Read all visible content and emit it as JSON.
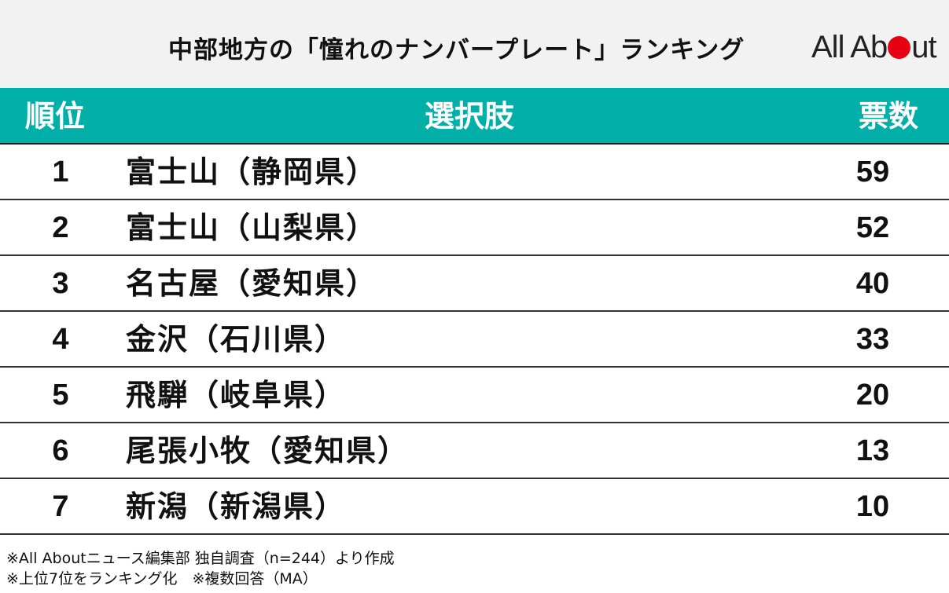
{
  "header": {
    "title": "中部地方の「憧れのナンバープレート」ランキング",
    "logo_text_before": "All Ab",
    "logo_text_after": "ut"
  },
  "table": {
    "headers": {
      "rank": "順位",
      "choice": "選択肢",
      "votes": "票数"
    }
  },
  "chart_data": {
    "type": "table",
    "columns": [
      "順位",
      "選択肢",
      "票数"
    ],
    "rows": [
      {
        "rank": "1",
        "choice": "富士山（静岡県）",
        "votes": 59
      },
      {
        "rank": "2",
        "choice": "富士山（山梨県）",
        "votes": 52
      },
      {
        "rank": "3",
        "choice": "名古屋（愛知県）",
        "votes": 40
      },
      {
        "rank": "4",
        "choice": "金沢（石川県）",
        "votes": 33
      },
      {
        "rank": "5",
        "choice": "飛騨（岐阜県）",
        "votes": 20
      },
      {
        "rank": "6",
        "choice": "尾張小牧（愛知県）",
        "votes": 13
      },
      {
        "rank": "7",
        "choice": "新潟（新潟県）",
        "votes": 10
      }
    ]
  },
  "notes": [
    "※All Aboutニュース編集部 独自調査（n=244）より作成",
    "※上位7位をランキング化　※複数回答（MA）"
  ],
  "colors": {
    "header_bg": "#00b0a8",
    "logo_dot": "#e60012",
    "title_bg": "#f2f2f2"
  }
}
